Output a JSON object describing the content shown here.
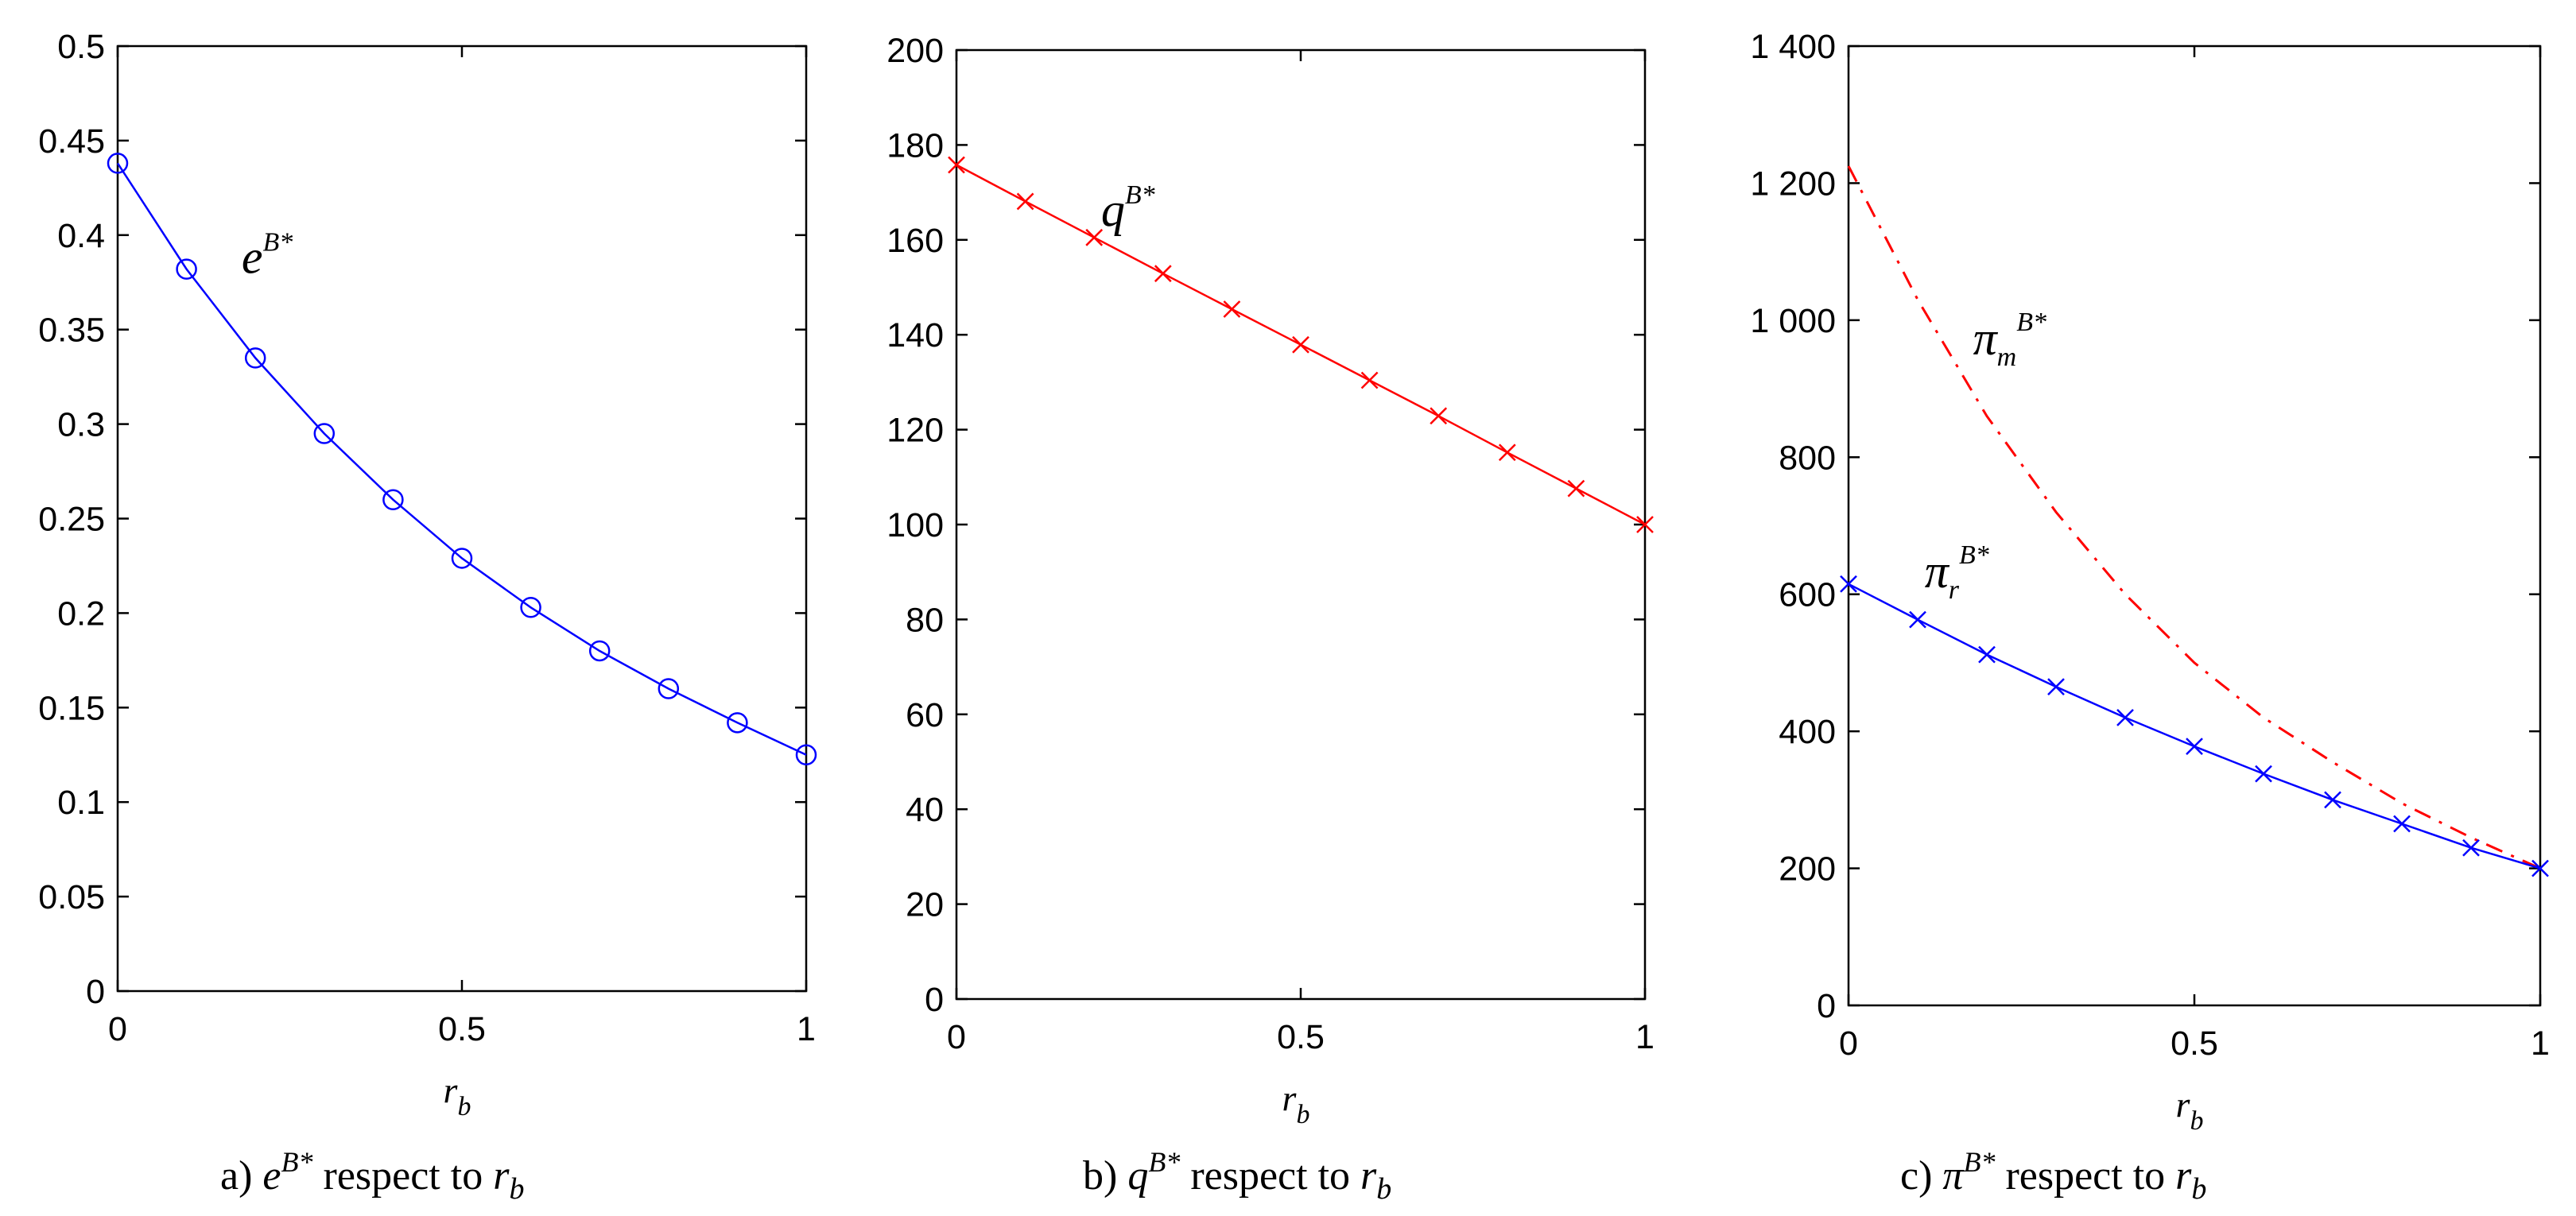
{
  "chart_data": [
    {
      "type": "line",
      "panel": "a",
      "xlabel": "r_b",
      "xlim": [
        0,
        1
      ],
      "ylim": [
        0,
        0.5
      ],
      "xticks": [
        "0",
        "0.5",
        "1"
      ],
      "yticks": [
        "0",
        "0.05",
        "0.1",
        "0.15",
        "0.2",
        "0.25",
        "0.3",
        "0.35",
        "0.4",
        "0.45",
        "0.5"
      ],
      "x": [
        0,
        0.1,
        0.2,
        0.3,
        0.4,
        0.5,
        0.6,
        0.7,
        0.8,
        0.9,
        1.0
      ],
      "series": [
        {
          "name": "e^{B*}",
          "color": "#0000ff",
          "marker": "circle",
          "linestyle": "solid",
          "values": [
            0.438,
            0.382,
            0.335,
            0.295,
            0.26,
            0.229,
            0.203,
            0.18,
            0.16,
            0.142,
            0.125
          ]
        }
      ],
      "annotations": [
        {
          "base": "e",
          "sup": "B*"
        }
      ],
      "caption": {
        "prefix": "a)",
        "base": "e",
        "sup": "B*",
        "text": "respect to",
        "var": "r",
        "sub": "b"
      }
    },
    {
      "type": "line",
      "panel": "b",
      "xlabel": "r_b",
      "xlim": [
        0,
        1
      ],
      "ylim": [
        0,
        200
      ],
      "xticks": [
        "0",
        "0.5",
        "1"
      ],
      "yticks": [
        "0",
        "20",
        "40",
        "60",
        "80",
        "100",
        "120",
        "140",
        "160",
        "180",
        "200"
      ],
      "x": [
        0,
        0.1,
        0.2,
        0.3,
        0.4,
        0.5,
        0.6,
        0.7,
        0.8,
        0.9,
        1.0
      ],
      "series": [
        {
          "name": "q^{B*}",
          "color": "#ff0000",
          "marker": "x",
          "linestyle": "solid",
          "values": [
            175.8,
            168.1,
            160.5,
            152.9,
            145.4,
            137.9,
            130.4,
            122.9,
            115.2,
            107.6,
            100.0
          ]
        }
      ],
      "annotations": [
        {
          "base": "q",
          "sup": "B*"
        }
      ],
      "caption": {
        "prefix": "b)",
        "base": "q",
        "sup": "B*",
        "text": "respect to",
        "var": "r",
        "sub": "b"
      }
    },
    {
      "type": "line",
      "panel": "c",
      "xlabel": "r_b",
      "xlim": [
        0,
        1
      ],
      "ylim": [
        0,
        1400
      ],
      "xticks": [
        "0",
        "0.5",
        "1"
      ],
      "yticks": [
        "0",
        "200",
        "400",
        "600",
        "800",
        "1 000",
        "1 200",
        "1 400"
      ],
      "x": [
        0,
        0.1,
        0.2,
        0.3,
        0.4,
        0.5,
        0.6,
        0.7,
        0.8,
        0.9,
        1.0
      ],
      "series": [
        {
          "name": "π_m^{B*}",
          "color": "#ff0000",
          "marker": "none",
          "linestyle": "dashdot",
          "values": [
            1225,
            1030,
            860,
            720,
            600,
            500,
            420,
            355,
            295,
            245,
            200
          ]
        },
        {
          "name": "π_r^{B*}",
          "color": "#0000ff",
          "marker": "x",
          "linestyle": "solid",
          "values": [
            615,
            563,
            512,
            465,
            420,
            378,
            338,
            300,
            265,
            230,
            200
          ]
        }
      ],
      "annotations": [
        {
          "base": "π",
          "sub": "m",
          "sup": "B*"
        },
        {
          "base": "π",
          "sub": "r",
          "sup": "B*"
        }
      ],
      "caption": {
        "prefix": "c)",
        "base": "π",
        "sup": "B*",
        "text": "respect to",
        "var": "r",
        "sub": "b"
      }
    }
  ]
}
